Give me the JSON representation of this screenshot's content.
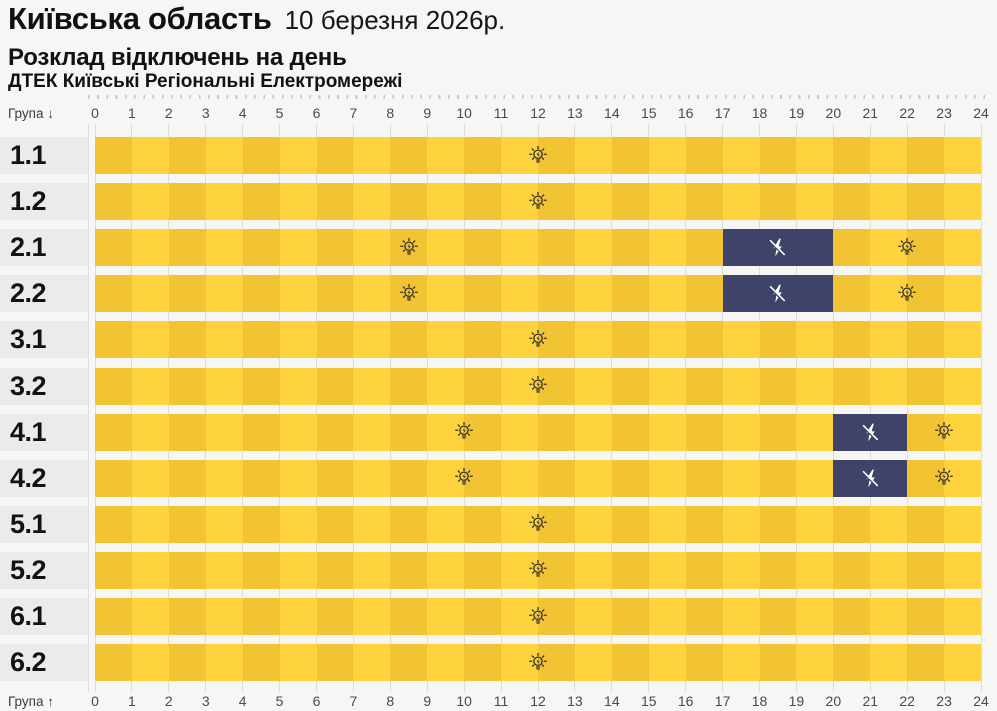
{
  "header": {
    "region": "Київська область",
    "date": "10 березня 2026р.",
    "title": "Розклад відключень на день",
    "subtitle": "ДТЕК Київські Регіональні Електромережі"
  },
  "axis": {
    "group_label_top": "Група ↓",
    "group_label_bottom": "Група ↑",
    "hours": [
      0,
      1,
      2,
      3,
      4,
      5,
      6,
      7,
      8,
      9,
      10,
      11,
      12,
      13,
      14,
      15,
      16,
      17,
      18,
      19,
      20,
      21,
      22,
      23,
      24
    ]
  },
  "icons": {
    "on_marker": "lightbulb-rays-icon",
    "outage_marker": "flash-off-icon"
  },
  "chart_data": {
    "type": "heatmap",
    "title": "Розклад відключень на день",
    "xlabel": "",
    "ylabel": "Група",
    "x_range": [
      0,
      24
    ],
    "x_tick_step": 1,
    "rows": [
      {
        "group": "1.1",
        "outages": [],
        "bulb_markers": [
          12
        ]
      },
      {
        "group": "1.2",
        "outages": [],
        "bulb_markers": [
          12
        ]
      },
      {
        "group": "2.1",
        "outages": [
          {
            "from": 17,
            "to": 20
          }
        ],
        "bulb_markers": [
          8.5,
          22
        ]
      },
      {
        "group": "2.2",
        "outages": [
          {
            "from": 17,
            "to": 20
          }
        ],
        "bulb_markers": [
          8.5,
          22
        ]
      },
      {
        "group": "3.1",
        "outages": [],
        "bulb_markers": [
          12
        ]
      },
      {
        "group": "3.2",
        "outages": [],
        "bulb_markers": [
          12
        ]
      },
      {
        "group": "4.1",
        "outages": [
          {
            "from": 20,
            "to": 22
          }
        ],
        "bulb_markers": [
          10,
          23
        ]
      },
      {
        "group": "4.2",
        "outages": [
          {
            "from": 20,
            "to": 22
          }
        ],
        "bulb_markers": [
          10,
          23
        ]
      },
      {
        "group": "5.1",
        "outages": [],
        "bulb_markers": [
          12
        ]
      },
      {
        "group": "5.2",
        "outages": [],
        "bulb_markers": [
          12
        ]
      },
      {
        "group": "6.1",
        "outages": [],
        "bulb_markers": [
          12
        ]
      },
      {
        "group": "6.2",
        "outages": [],
        "bulb_markers": [
          12
        ]
      }
    ],
    "colors": {
      "cell_even": "#f2c333",
      "cell_odd": "#fed33e",
      "outage": "#3f436a",
      "bulb_icon": "#33302a",
      "flash_icon": "#ffffff",
      "grid": "#dcdcd9",
      "label_bg": "#ebebea",
      "page_bg": "#f6f6f5"
    }
  }
}
